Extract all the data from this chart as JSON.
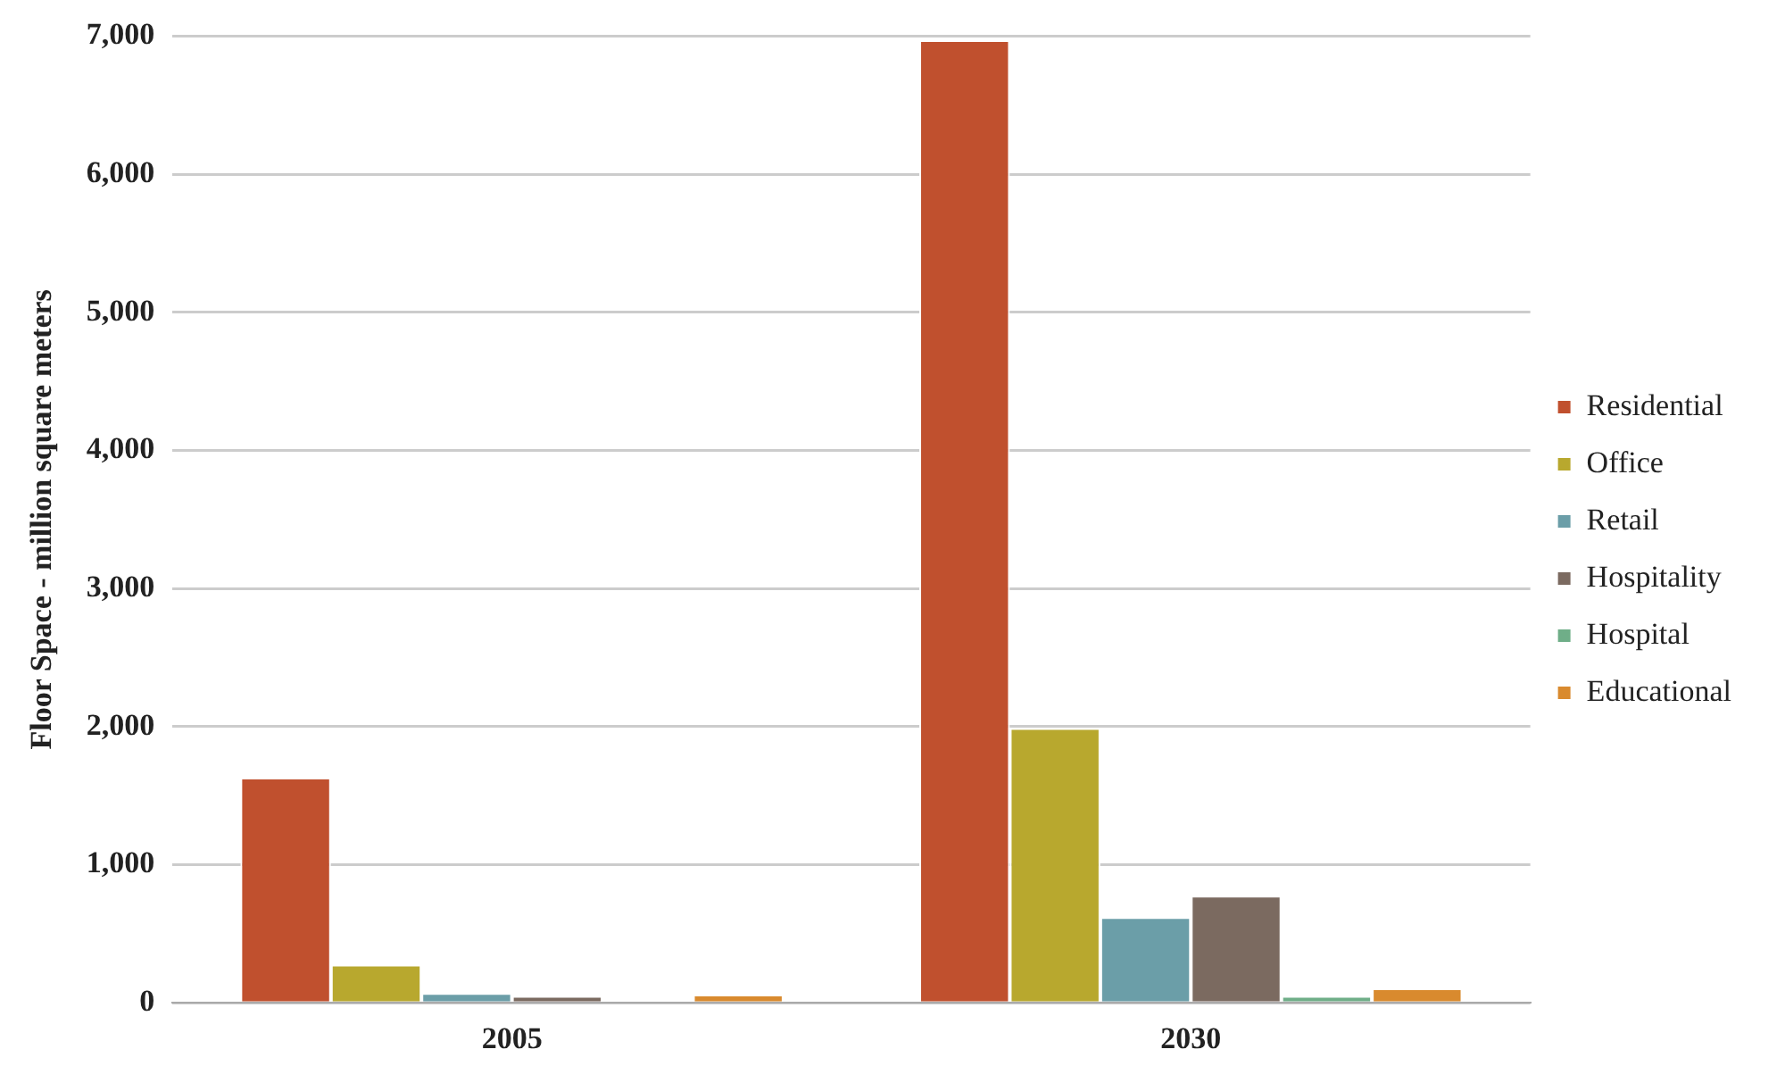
{
  "chart_data": {
    "type": "bar",
    "ylabel": "Floor Space - million square meters",
    "categories": [
      "2005",
      "2030"
    ],
    "series": [
      {
        "name": "Residential",
        "color": "#c0502e",
        "values": [
          1630,
          6970
        ]
      },
      {
        "name": "Office",
        "color": "#b8a82e",
        "values": [
          276,
          1990
        ]
      },
      {
        "name": "Retail",
        "color": "#6b9ea8",
        "values": [
          70,
          620
        ]
      },
      {
        "name": "Hospitality",
        "color": "#7b6a60",
        "values": [
          50,
          775
        ]
      },
      {
        "name": "Hospital",
        "color": "#6fae88",
        "values": [
          0,
          50
        ]
      },
      {
        "name": "Educational",
        "color": "#d98a2e",
        "values": [
          60,
          105
        ]
      }
    ],
    "ylim": [
      0,
      7000
    ],
    "yticks": [
      {
        "value": 0,
        "label": "0"
      },
      {
        "value": 1000,
        "label": "1,000"
      },
      {
        "value": 2000,
        "label": "2,000"
      },
      {
        "value": 3000,
        "label": "3,000"
      },
      {
        "value": 4000,
        "label": "4,000"
      },
      {
        "value": 5000,
        "label": "5,000"
      },
      {
        "value": 6000,
        "label": "6,000"
      },
      {
        "value": 7000,
        "label": "7,000"
      }
    ],
    "grid": "y",
    "legend": "right"
  }
}
